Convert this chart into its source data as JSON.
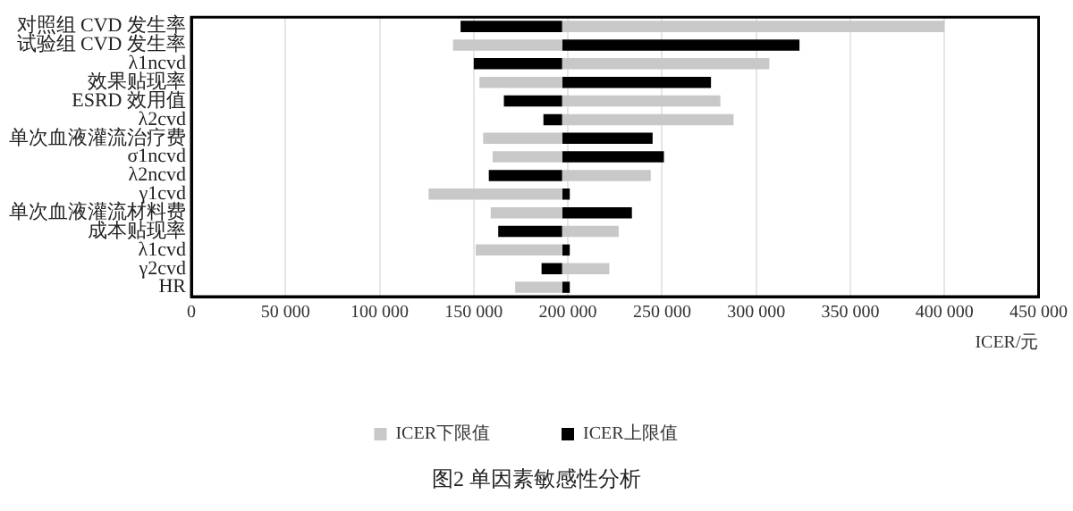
{
  "chart_data": {
    "type": "bar",
    "orientation": "horizontal",
    "title": "图2 单因素敏感性分析",
    "xlabel": "ICER/元",
    "categories": [
      "对照组 CVD 发生率",
      "试验组 CVD 发生率",
      "λ1ncvd",
      "效果贴现率",
      "ESRD 效用值",
      "λ2cvd",
      "单次血液灌流治疗费",
      "σ1ncvd",
      "λ2ncvd",
      "γ1cvd",
      "单次血液灌流材料费",
      "成本贴现率",
      "λ1cvd",
      "γ2cvd",
      "HR"
    ],
    "series": [
      {
        "name": "ICER下限值",
        "color": "#c8c8c8",
        "base": [
          197000,
          197000,
          197000,
          197000,
          197000,
          197000,
          197000,
          197000,
          197000,
          197000,
          197000,
          197000,
          197000,
          197000,
          197000
        ],
        "values": [
          203000,
          -58000,
          110000,
          -44000,
          84000,
          91000,
          -42000,
          -37000,
          47000,
          -71000,
          -38000,
          30000,
          -46000,
          25000,
          -25000
        ]
      },
      {
        "name": "ICER上限值",
        "color": "#000000",
        "base": [
          197000,
          197000,
          197000,
          197000,
          197000,
          197000,
          197000,
          197000,
          197000,
          197000,
          197000,
          197000,
          197000,
          197000,
          197000
        ],
        "values": [
          -54000,
          126000,
          -47000,
          79000,
          -31000,
          -10000,
          48000,
          54000,
          -39000,
          4000,
          37000,
          -34000,
          4000,
          -11000,
          4000
        ]
      }
    ],
    "xlim": [
      0,
      450000
    ],
    "xticks": [
      0,
      {
        "value": 50000,
        "label": "50 000"
      },
      {
        "value": 100000,
        "label": "100 000"
      },
      {
        "value": 150000,
        "label": "150 000"
      },
      {
        "value": 200000,
        "label": "200 000"
      },
      {
        "value": 250000,
        "label": "250 000"
      },
      {
        "value": 300000,
        "label": "300 000"
      },
      {
        "value": 350000,
        "label": "350 000"
      },
      {
        "value": 400000,
        "label": "400 000"
      },
      {
        "value": 450000,
        "label": "450 000"
      }
    ],
    "grid": "x",
    "legend": "bottom"
  }
}
